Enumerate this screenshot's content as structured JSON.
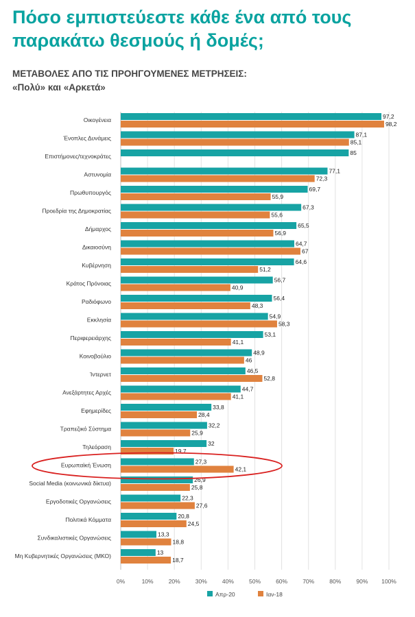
{
  "header": {
    "title_line1": "Πόσο εμπιστεύεστε κάθε ένα από τους",
    "title_line2": "παρακάτω θεσμούς ή δομές;",
    "subtitle_line1": "ΜΕΤΑΒΟΛΕΣ ΑΠΟ ΤΙΣ ΠΡΟΗΓΟΥΜΕΝΕΣ ΜΕΤΡΗΣΕΙΣ:",
    "subtitle_line2": "«Πολύ» και «Αρκετά»"
  },
  "chart_data": {
    "type": "bar",
    "orientation": "horizontal",
    "categories": [
      "Οικογένεια",
      "Ένοπλες Δυνάμεις",
      "Επιστήμονες/τεχνοκράτες",
      "Αστυνομία",
      "Πρωθυπουργός",
      "Προεδρία της Δημοκρατίας",
      "Δήμαρχος",
      "Δικαιοσύνη",
      "Κυβέρνηση",
      "Κράτος Πρόνοιας",
      "Ραδιόφωνο",
      "Εκκλησία",
      "Περιφερειάρχης",
      "Κοινοβούλιο",
      "Ίντερνετ",
      "Ανεξάρτητες Αρχές",
      "Εφημερίδες",
      "Τραπεζικό Σύστημα",
      "Τηλεόραση",
      "Ευρωπαϊκή Ένωση",
      "Social Media (κοινωνικά δίκτυα)",
      "Εργοδοτικές Οργανώσεις",
      "Πολιτικά Κόμματα",
      "Συνδικαλιστικές Οργανώσεις",
      "Μη Κυβερνητικές Οργανώσεις (ΜΚΟ)"
    ],
    "series": [
      {
        "name": "Απρ-20",
        "color": "#17a3a4",
        "values": [
          97.2,
          87.1,
          85,
          77.1,
          69.7,
          67.3,
          65.5,
          64.7,
          64.6,
          56.7,
          56.4,
          54.9,
          53.1,
          48.9,
          46.5,
          44.7,
          33.8,
          32.2,
          32,
          27.3,
          26.9,
          22.3,
          20.8,
          13.3,
          13
        ],
        "labels": [
          "97,2",
          "87,1",
          "85",
          "77,1",
          "69,7",
          "67,3",
          "65,5",
          "64,7",
          "64,6",
          "56,7",
          "56,4",
          "54,9",
          "53,1",
          "48,9",
          "46,5",
          "44,7",
          "33,8",
          "32,2",
          "32",
          "27,3",
          "26,9",
          "22,3",
          "20,8",
          "13,3",
          "13"
        ]
      },
      {
        "name": "Ιαν-18",
        "color": "#e0823e",
        "values": [
          98.2,
          85.1,
          null,
          72.3,
          55.9,
          55.6,
          56.9,
          67,
          51.2,
          40.9,
          48.3,
          58.3,
          41.1,
          46,
          52.8,
          41.1,
          28.4,
          25.9,
          19.7,
          42.1,
          25.8,
          27.6,
          24.5,
          18.8,
          18.7
        ],
        "labels": [
          "98,2",
          "85,1",
          "",
          "72,3",
          "55,9",
          "55,6",
          "56,9",
          "67",
          "51,2",
          "40,9",
          "48,3",
          "58,3",
          "41,1",
          "46",
          "52,8",
          "41,1",
          "28,4",
          "25,9",
          "19,7",
          "42,1",
          "25,8",
          "27,6",
          "24,5",
          "18,8",
          "18,7"
        ]
      }
    ],
    "xlim": [
      0,
      100
    ],
    "xticks": [
      "0%",
      "10%",
      "20%",
      "30%",
      "40%",
      "50%",
      "60%",
      "70%",
      "80%",
      "90%",
      "100%"
    ],
    "grid": true,
    "legend_position": "bottom-center",
    "highlighted_category": "Ευρωπαϊκή Ένωση",
    "highlight_color": "#d9201f"
  }
}
